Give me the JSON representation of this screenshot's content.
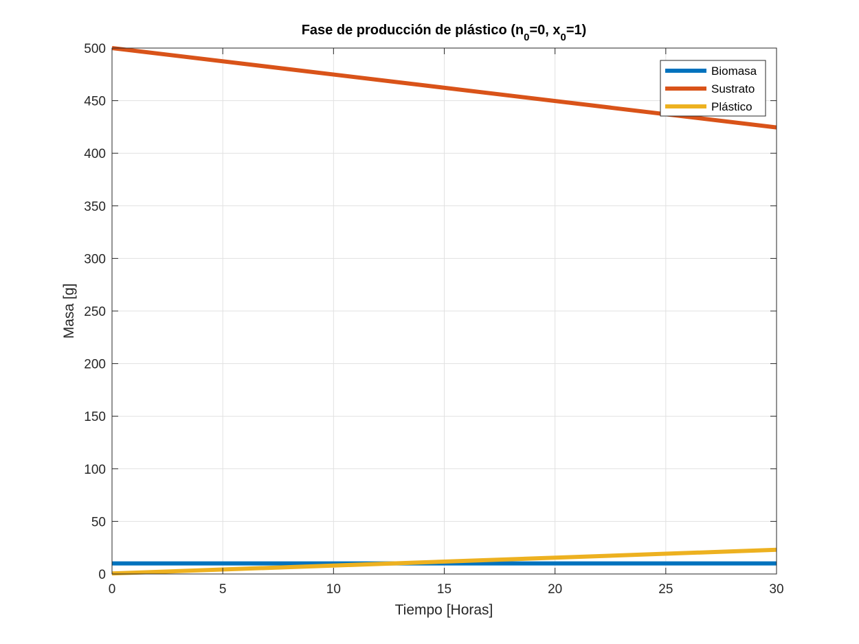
{
  "chart_data": {
    "type": "line",
    "title": {
      "parts": [
        {
          "text": "Fase de producción de plástico (n",
          "sub": false
        },
        {
          "text": "0",
          "sub": true
        },
        {
          "text": "=0, x",
          "sub": false
        },
        {
          "text": "0",
          "sub": true
        },
        {
          "text": "=1)",
          "sub": false
        }
      ]
    },
    "xlabel": "Tiempo [Horas]",
    "ylabel": "Masa [g]",
    "xlim": [
      0,
      30
    ],
    "ylim": [
      0,
      500
    ],
    "xticks": [
      0,
      5,
      10,
      15,
      20,
      25,
      30
    ],
    "yticks": [
      0,
      50,
      100,
      150,
      200,
      250,
      300,
      350,
      400,
      450,
      500
    ],
    "grid": true,
    "legend_position": "top-right",
    "series": [
      {
        "name": "Biomasa",
        "color": "#0072BD",
        "x": [
          0,
          30
        ],
        "y": [
          10,
          10
        ]
      },
      {
        "name": "Sustrato",
        "color": "#D95319",
        "x": [
          0,
          30
        ],
        "y": [
          500,
          424.5
        ]
      },
      {
        "name": "Plástico",
        "color": "#EDB120",
        "x": [
          0,
          30
        ],
        "y": [
          0.5,
          23
        ]
      }
    ]
  }
}
